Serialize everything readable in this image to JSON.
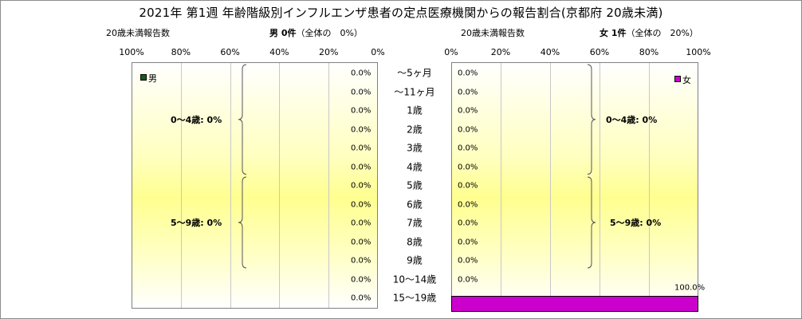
{
  "title": "2021年 第1週 年齢階級別インフルエンザ患者の定点医療機関からの報告割合(京都府 20歳未満)",
  "male": {
    "axis_label": "20歳未満報告数",
    "header_bold": "男 0件",
    "header_note": "（全体の　0%）",
    "legend": "男",
    "legend_color": "#1a5c1a",
    "ticks": [
      "100%",
      "80%",
      "60%",
      "40%",
      "20%",
      "0%"
    ],
    "groups": [
      {
        "label": "0～4歳: 0%",
        "from": 0,
        "to": 5
      },
      {
        "label": "5～9歳: 0%",
        "from": 6,
        "to": 10
      }
    ]
  },
  "female": {
    "axis_label": "20歳未満報告数",
    "header_bold": "女 1件",
    "header_note": "（全体の　20%）",
    "legend": "女",
    "legend_color": "#cc00cc",
    "ticks": [
      "0%",
      "20%",
      "40%",
      "60%",
      "80%",
      "100%"
    ],
    "groups": [
      {
        "label": "0～4歳: 0%",
        "from": 0,
        "to": 5
      },
      {
        "label": "5～9歳: 0%",
        "from": 6,
        "to": 10
      }
    ]
  },
  "chart_data": {
    "type": "bar",
    "orientation": "horizontal",
    "categories": [
      "～5ヶ月",
      "～11ヶ月",
      "1歳",
      "2歳",
      "3歳",
      "4歳",
      "5歳",
      "6歳",
      "7歳",
      "8歳",
      "9歳",
      "10～14歳",
      "15～19歳"
    ],
    "series": [
      {
        "name": "男",
        "values": [
          0,
          0,
          0,
          0,
          0,
          0,
          0,
          0,
          0,
          0,
          0,
          0,
          0
        ],
        "labels": [
          "0.0%",
          "0.0%",
          "0.0%",
          "0.0%",
          "0.0%",
          "0.0%",
          "0.0%",
          "0.0%",
          "0.0%",
          "0.0%",
          "0.0%",
          "0.0%",
          "0.0%"
        ]
      },
      {
        "name": "女",
        "values": [
          0,
          0,
          0,
          0,
          0,
          0,
          0,
          0,
          0,
          0,
          0,
          0,
          100
        ],
        "labels": [
          "0.0%",
          "0.0%",
          "0.0%",
          "0.0%",
          "0.0%",
          "0.0%",
          "0.0%",
          "0.0%",
          "0.0%",
          "0.0%",
          "0.0%",
          "0.0%",
          "100.0%"
        ]
      }
    ],
    "xlim": [
      0,
      100
    ],
    "grid": true
  }
}
